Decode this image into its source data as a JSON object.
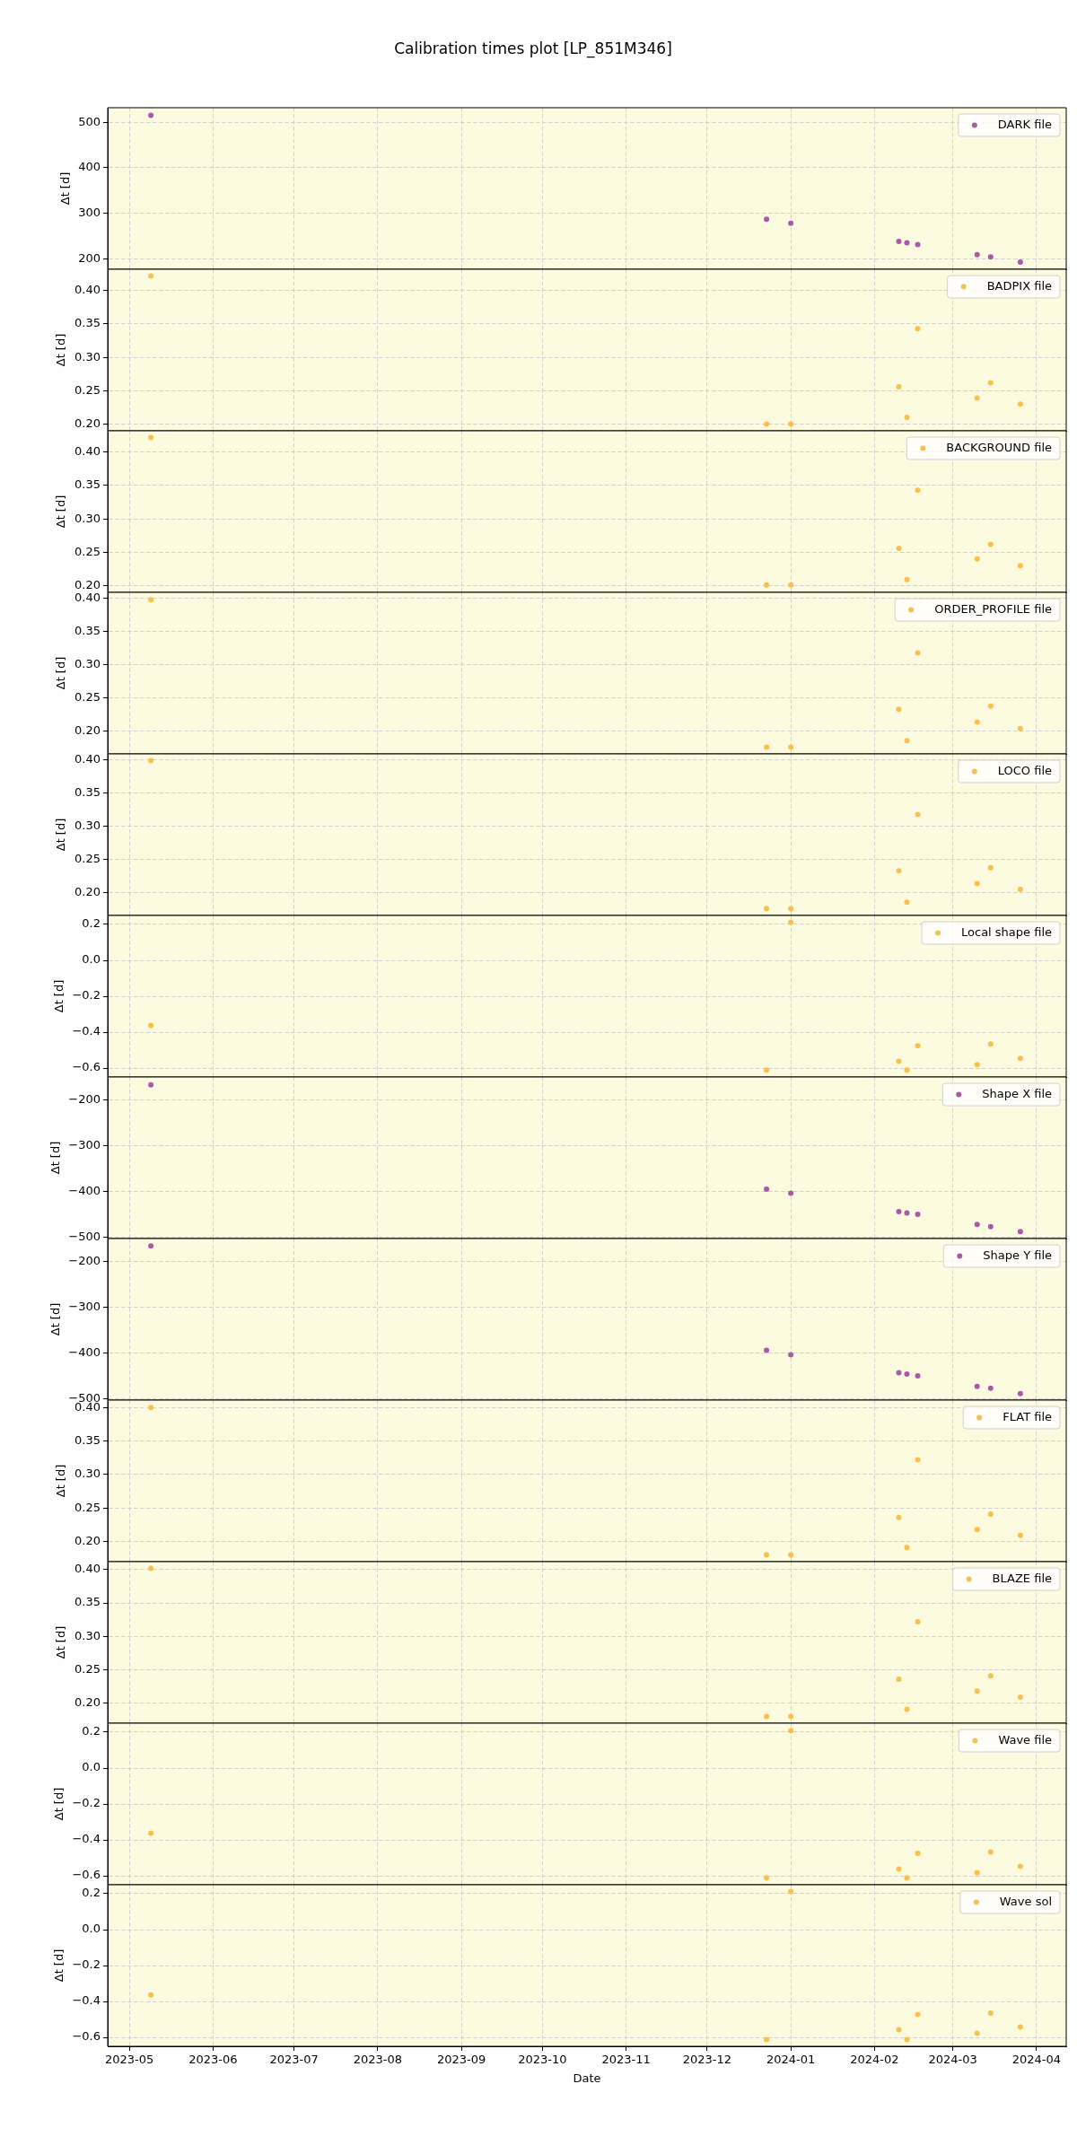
{
  "chart_data": [
    {
      "type": "scatter",
      "title": "Calibration times plot [LP_851M346]",
      "x": [
        "2023-05-09",
        "2023-12-23",
        "2024-01-01",
        "2024-02-10",
        "2024-02-13",
        "2024-02-17",
        "2024-03-10",
        "2024-03-15",
        "2024-03-26"
      ],
      "series": [
        {
          "name": "DARK file",
          "color": "#a85aa8",
          "values": [
            515,
            287,
            278,
            238,
            235,
            231,
            209,
            204,
            193
          ]
        }
      ],
      "xlim": [
        "2023-04-23",
        "2024-04-12"
      ],
      "xticks": [
        "2023-05",
        "2023-06",
        "2023-07",
        "2023-08",
        "2023-09",
        "2023-10",
        "2023-11",
        "2023-12",
        "2024-01",
        "2024-02",
        "2024-03",
        "2024-04"
      ],
      "ylim": [
        177,
        532
      ],
      "yticks": [
        200,
        300,
        400,
        500
      ],
      "ylabel": "Δt [d]",
      "grid": true,
      "legend": "top right",
      "marker": "circle",
      "tick_labels": "y"
    },
    {
      "type": "scatter",
      "x": [
        "2023-05-09",
        "2023-12-23",
        "2024-01-01",
        "2024-02-10",
        "2024-02-13",
        "2024-02-17",
        "2024-03-10",
        "2024-03-15",
        "2024-03-26"
      ],
      "series": [
        {
          "name": "BADPIX file",
          "color": "#fbbf4c",
          "values": [
            0.422,
            0.2,
            0.2,
            0.256,
            0.21,
            0.343,
            0.239,
            0.262,
            0.23
          ]
        }
      ],
      "xlim": [
        "2023-04-23",
        "2024-04-12"
      ],
      "xticks": [
        "2023-05",
        "2023-06",
        "2023-07",
        "2023-08",
        "2023-09",
        "2023-10",
        "2023-11",
        "2023-12",
        "2024-01",
        "2024-02",
        "2024-03",
        "2024-04"
      ],
      "ylim": [
        0.19,
        0.432
      ],
      "yticks": [
        {
          "value": 0.2,
          "label": "0.20"
        },
        0.25,
        {
          "value": 0.3,
          "label": "0.30"
        },
        0.35,
        {
          "value": 0.4,
          "label": "0.40"
        }
      ],
      "ylabel": "Δt [d]",
      "grid": true,
      "legend": "top right",
      "marker": "circle",
      "tick_labels": "y"
    },
    {
      "type": "scatter",
      "x": [
        "2023-05-09",
        "2023-12-23",
        "2024-01-01",
        "2024-02-10",
        "2024-02-13",
        "2024-02-17",
        "2024-03-10",
        "2024-03-15",
        "2024-03-26"
      ],
      "series": [
        {
          "name": "BACKGROUND file",
          "color": "#fbbf4c",
          "values": [
            0.422,
            0.201,
            0.201,
            0.256,
            0.209,
            0.343,
            0.24,
            0.262,
            0.23
          ]
        }
      ],
      "xlim": [
        "2023-04-23",
        "2024-04-12"
      ],
      "xticks": [
        "2023-05",
        "2023-06",
        "2023-07",
        "2023-08",
        "2023-09",
        "2023-10",
        "2023-11",
        "2023-12",
        "2024-01",
        "2024-02",
        "2024-03",
        "2024-04"
      ],
      "ylim": [
        0.19,
        0.432
      ],
      "yticks": [
        {
          "value": 0.2,
          "label": "0.20"
        },
        0.25,
        {
          "value": 0.3,
          "label": "0.30"
        },
        0.35,
        {
          "value": 0.4,
          "label": "0.40"
        }
      ],
      "ylabel": "Δt [d]",
      "grid": true,
      "legend": "top right",
      "marker": "circle",
      "tick_labels": "y"
    },
    {
      "type": "scatter",
      "x": [
        "2023-05-09",
        "2023-12-23",
        "2024-01-01",
        "2024-02-10",
        "2024-02-13",
        "2024-02-17",
        "2024-03-10",
        "2024-03-15",
        "2024-03-26"
      ],
      "series": [
        {
          "name": "ORDER_PROFILE file",
          "color": "#fbbf4c",
          "values": [
            0.398,
            0.176,
            0.176,
            0.233,
            0.186,
            0.318,
            0.214,
            0.238,
            0.204
          ]
        }
      ],
      "xlim": [
        "2023-04-23",
        "2024-04-12"
      ],
      "xticks": [
        "2023-05",
        "2023-06",
        "2023-07",
        "2023-08",
        "2023-09",
        "2023-10",
        "2023-11",
        "2023-12",
        "2024-01",
        "2024-02",
        "2024-03",
        "2024-04"
      ],
      "ylim": [
        0.166,
        0.409
      ],
      "yticks": [
        {
          "value": 0.2,
          "label": "0.20"
        },
        0.25,
        {
          "value": 0.3,
          "label": "0.30"
        },
        0.35,
        {
          "value": 0.4,
          "label": "0.40"
        }
      ],
      "ylabel": "Δt [d]",
      "grid": true,
      "legend": "top right",
      "marker": "circle",
      "tick_labels": "y"
    },
    {
      "type": "scatter",
      "x": [
        "2023-05-09",
        "2023-12-23",
        "2024-01-01",
        "2024-02-10",
        "2024-02-13",
        "2024-02-17",
        "2024-03-10",
        "2024-03-15",
        "2024-03-26"
      ],
      "series": [
        {
          "name": "LOCO file",
          "color": "#fbbf4c",
          "values": [
            0.399,
            0.176,
            0.176,
            0.233,
            0.186,
            0.318,
            0.214,
            0.238,
            0.205
          ]
        }
      ],
      "xlim": [
        "2023-04-23",
        "2024-04-12"
      ],
      "xticks": [
        "2023-05",
        "2023-06",
        "2023-07",
        "2023-08",
        "2023-09",
        "2023-10",
        "2023-11",
        "2023-12",
        "2024-01",
        "2024-02",
        "2024-03",
        "2024-04"
      ],
      "ylim": [
        0.166,
        0.409
      ],
      "yticks": [
        {
          "value": 0.2,
          "label": "0.20"
        },
        0.25,
        {
          "value": 0.3,
          "label": "0.30"
        },
        0.35,
        {
          "value": 0.4,
          "label": "0.40"
        }
      ],
      "ylabel": "Δt [d]",
      "grid": true,
      "legend": "top right",
      "marker": "circle",
      "tick_labels": "y"
    },
    {
      "type": "scatter",
      "x": [
        "2023-05-09",
        "2023-12-23",
        "2024-01-01",
        "2024-02-10",
        "2024-02-13",
        "2024-02-17",
        "2024-03-10",
        "2024-03-15",
        "2024-03-26"
      ],
      "series": [
        {
          "name": "Local shape file",
          "color": "#fbbf4c",
          "values": [
            -0.362,
            -0.611,
            0.211,
            -0.562,
            -0.611,
            -0.476,
            -0.581,
            -0.466,
            -0.546
          ]
        }
      ],
      "xlim": [
        "2023-04-23",
        "2024-04-12"
      ],
      "xticks": [
        "2023-05",
        "2023-06",
        "2023-07",
        "2023-08",
        "2023-09",
        "2023-10",
        "2023-11",
        "2023-12",
        "2024-01",
        "2024-02",
        "2024-03",
        "2024-04"
      ],
      "ylim": [
        -0.65,
        0.25
      ],
      "yticks": [
        {
          "value": -0.6,
          "label": "−0.6"
        },
        {
          "value": -0.4,
          "label": "−0.4"
        },
        {
          "value": -0.2,
          "label": "−0.2"
        },
        {
          "value": 0,
          "label": "0.0"
        },
        0.2
      ],
      "ylabel": "Δt [d]",
      "grid": true,
      "legend": "top right",
      "marker": "circle",
      "tick_labels": "y"
    },
    {
      "type": "scatter",
      "x": [
        "2023-05-09",
        "2023-12-23",
        "2024-01-01",
        "2024-02-10",
        "2024-02-13",
        "2024-02-17",
        "2024-03-10",
        "2024-03-15",
        "2024-03-26"
      ],
      "series": [
        {
          "name": "Shape X file",
          "color": "#a85aa8",
          "values": [
            -167,
            -395,
            -404,
            -444,
            -447,
            -450,
            -472,
            -477,
            -488
          ]
        }
      ],
      "xlim": [
        "2023-04-23",
        "2024-04-12"
      ],
      "xticks": [
        "2023-05",
        "2023-06",
        "2023-07",
        "2023-08",
        "2023-09",
        "2023-10",
        "2023-11",
        "2023-12",
        "2024-01",
        "2024-02",
        "2024-03",
        "2024-04"
      ],
      "ylim": [
        -503,
        -150
      ],
      "yticks": [
        {
          "value": -500,
          "label": "−500"
        },
        {
          "value": -400,
          "label": "−400"
        },
        {
          "value": -300,
          "label": "−300"
        },
        {
          "value": -200,
          "label": "−200"
        }
      ],
      "ylabel": "Δt [d]",
      "grid": true,
      "legend": "top right",
      "marker": "circle",
      "tick_labels": "y"
    },
    {
      "type": "scatter",
      "x": [
        "2023-05-09",
        "2023-12-23",
        "2024-01-01",
        "2024-02-10",
        "2024-02-13",
        "2024-02-17",
        "2024-03-10",
        "2024-03-15",
        "2024-03-26"
      ],
      "series": [
        {
          "name": "Shape Y file",
          "color": "#a85aa8",
          "values": [
            -166,
            -394,
            -404,
            -443,
            -446,
            -450,
            -473,
            -477,
            -489
          ]
        }
      ],
      "xlim": [
        "2023-04-23",
        "2024-04-12"
      ],
      "xticks": [
        "2023-05",
        "2023-06",
        "2023-07",
        "2023-08",
        "2023-09",
        "2023-10",
        "2023-11",
        "2023-12",
        "2024-01",
        "2024-02",
        "2024-03",
        "2024-04"
      ],
      "ylim": [
        -503,
        -150
      ],
      "yticks": [
        {
          "value": -500,
          "label": "−500"
        },
        {
          "value": -400,
          "label": "−400"
        },
        {
          "value": -300,
          "label": "−300"
        },
        {
          "value": -200,
          "label": "−200"
        }
      ],
      "ylabel": "Δt [d]",
      "grid": true,
      "legend": "top right",
      "marker": "circle",
      "tick_labels": "y"
    },
    {
      "type": "scatter",
      "x": [
        "2023-05-09",
        "2023-12-23",
        "2024-01-01",
        "2024-02-10",
        "2024-02-13",
        "2024-02-17",
        "2024-03-10",
        "2024-03-15",
        "2024-03-26"
      ],
      "series": [
        {
          "name": "FLAT file",
          "color": "#fbbf4c",
          "values": [
            0.4,
            0.18,
            0.18,
            0.236,
            0.191,
            0.322,
            0.218,
            0.241,
            0.209
          ]
        }
      ],
      "xlim": [
        "2023-04-23",
        "2024-04-12"
      ],
      "xticks": [
        "2023-05",
        "2023-06",
        "2023-07",
        "2023-08",
        "2023-09",
        "2023-10",
        "2023-11",
        "2023-12",
        "2024-01",
        "2024-02",
        "2024-03",
        "2024-04"
      ],
      "ylim": [
        0.17,
        0.411
      ],
      "yticks": [
        {
          "value": 0.2,
          "label": "0.20"
        },
        0.25,
        {
          "value": 0.3,
          "label": "0.30"
        },
        0.35,
        {
          "value": 0.4,
          "label": "0.40"
        }
      ],
      "ylabel": "Δt [d]",
      "grid": true,
      "legend": "top right",
      "marker": "circle",
      "tick_labels": "y"
    },
    {
      "type": "scatter",
      "x": [
        "2023-05-09",
        "2023-12-23",
        "2024-01-01",
        "2024-02-10",
        "2024-02-13",
        "2024-02-17",
        "2024-03-10",
        "2024-03-15",
        "2024-03-26"
      ],
      "series": [
        {
          "name": "BLAZE file",
          "color": "#fbbf4c",
          "values": [
            0.402,
            0.18,
            0.18,
            0.236,
            0.191,
            0.322,
            0.218,
            0.241,
            0.209
          ]
        }
      ],
      "xlim": [
        "2023-04-23",
        "2024-04-12"
      ],
      "xticks": [
        "2023-05",
        "2023-06",
        "2023-07",
        "2023-08",
        "2023-09",
        "2023-10",
        "2023-11",
        "2023-12",
        "2024-01",
        "2024-02",
        "2024-03",
        "2024-04"
      ],
      "ylim": [
        0.17,
        0.412
      ],
      "yticks": [
        {
          "value": 0.2,
          "label": "0.20"
        },
        0.25,
        {
          "value": 0.3,
          "label": "0.30"
        },
        0.35,
        {
          "value": 0.4,
          "label": "0.40"
        }
      ],
      "ylabel": "Δt [d]",
      "grid": true,
      "legend": "top right",
      "marker": "circle",
      "tick_labels": "y"
    },
    {
      "type": "scatter",
      "x": [
        "2023-05-09",
        "2023-12-23",
        "2024-01-01",
        "2024-02-10",
        "2024-02-13",
        "2024-02-17",
        "2024-03-10",
        "2024-03-15",
        "2024-03-26"
      ],
      "series": [
        {
          "name": "Wave file",
          "color": "#fbbf4c",
          "values": [
            -0.362,
            -0.611,
            0.209,
            -0.563,
            -0.611,
            -0.475,
            -0.582,
            -0.467,
            -0.547
          ]
        }
      ],
      "xlim": [
        "2023-04-23",
        "2024-04-12"
      ],
      "xticks": [
        "2023-05",
        "2023-06",
        "2023-07",
        "2023-08",
        "2023-09",
        "2023-10",
        "2023-11",
        "2023-12",
        "2024-01",
        "2024-02",
        "2024-03",
        "2024-04"
      ],
      "ylim": [
        -0.65,
        0.25
      ],
      "yticks": [
        {
          "value": -0.6,
          "label": "−0.6"
        },
        {
          "value": -0.4,
          "label": "−0.4"
        },
        {
          "value": -0.2,
          "label": "−0.2"
        },
        {
          "value": 0,
          "label": "0.0"
        },
        0.2
      ],
      "ylabel": "Δt [d]",
      "grid": true,
      "legend": "top right",
      "marker": "circle",
      "tick_labels": "y"
    },
    {
      "type": "scatter",
      "x": [
        "2023-05-09",
        "2023-12-23",
        "2024-01-01",
        "2024-02-10",
        "2024-02-13",
        "2024-02-17",
        "2024-03-10",
        "2024-03-15",
        "2024-03-26"
      ],
      "series": [
        {
          "name": "Wave sol",
          "color": "#fbbf4c",
          "values": [
            -0.364,
            -0.612,
            0.213,
            -0.558,
            -0.612,
            -0.473,
            -0.577,
            -0.465,
            -0.542
          ]
        }
      ],
      "xlim": [
        "2023-04-23",
        "2024-04-12"
      ],
      "xticks": [
        "2023-05",
        "2023-06",
        "2023-07",
        "2023-08",
        "2023-09",
        "2023-10",
        "2023-11",
        "2023-12",
        "2024-01",
        "2024-02",
        "2024-03",
        "2024-04"
      ],
      "ylim": [
        -0.65,
        0.25
      ],
      "yticks": [
        {
          "value": -0.6,
          "label": "−0.6"
        },
        {
          "value": -0.4,
          "label": "−0.4"
        },
        {
          "value": -0.2,
          "label": "−0.2"
        },
        {
          "value": 0,
          "label": "0.0"
        },
        0.2
      ],
      "xlabel": "Date",
      "ylabel": "Δt [d]",
      "grid": true,
      "legend": "top right",
      "marker": "circle"
    }
  ]
}
